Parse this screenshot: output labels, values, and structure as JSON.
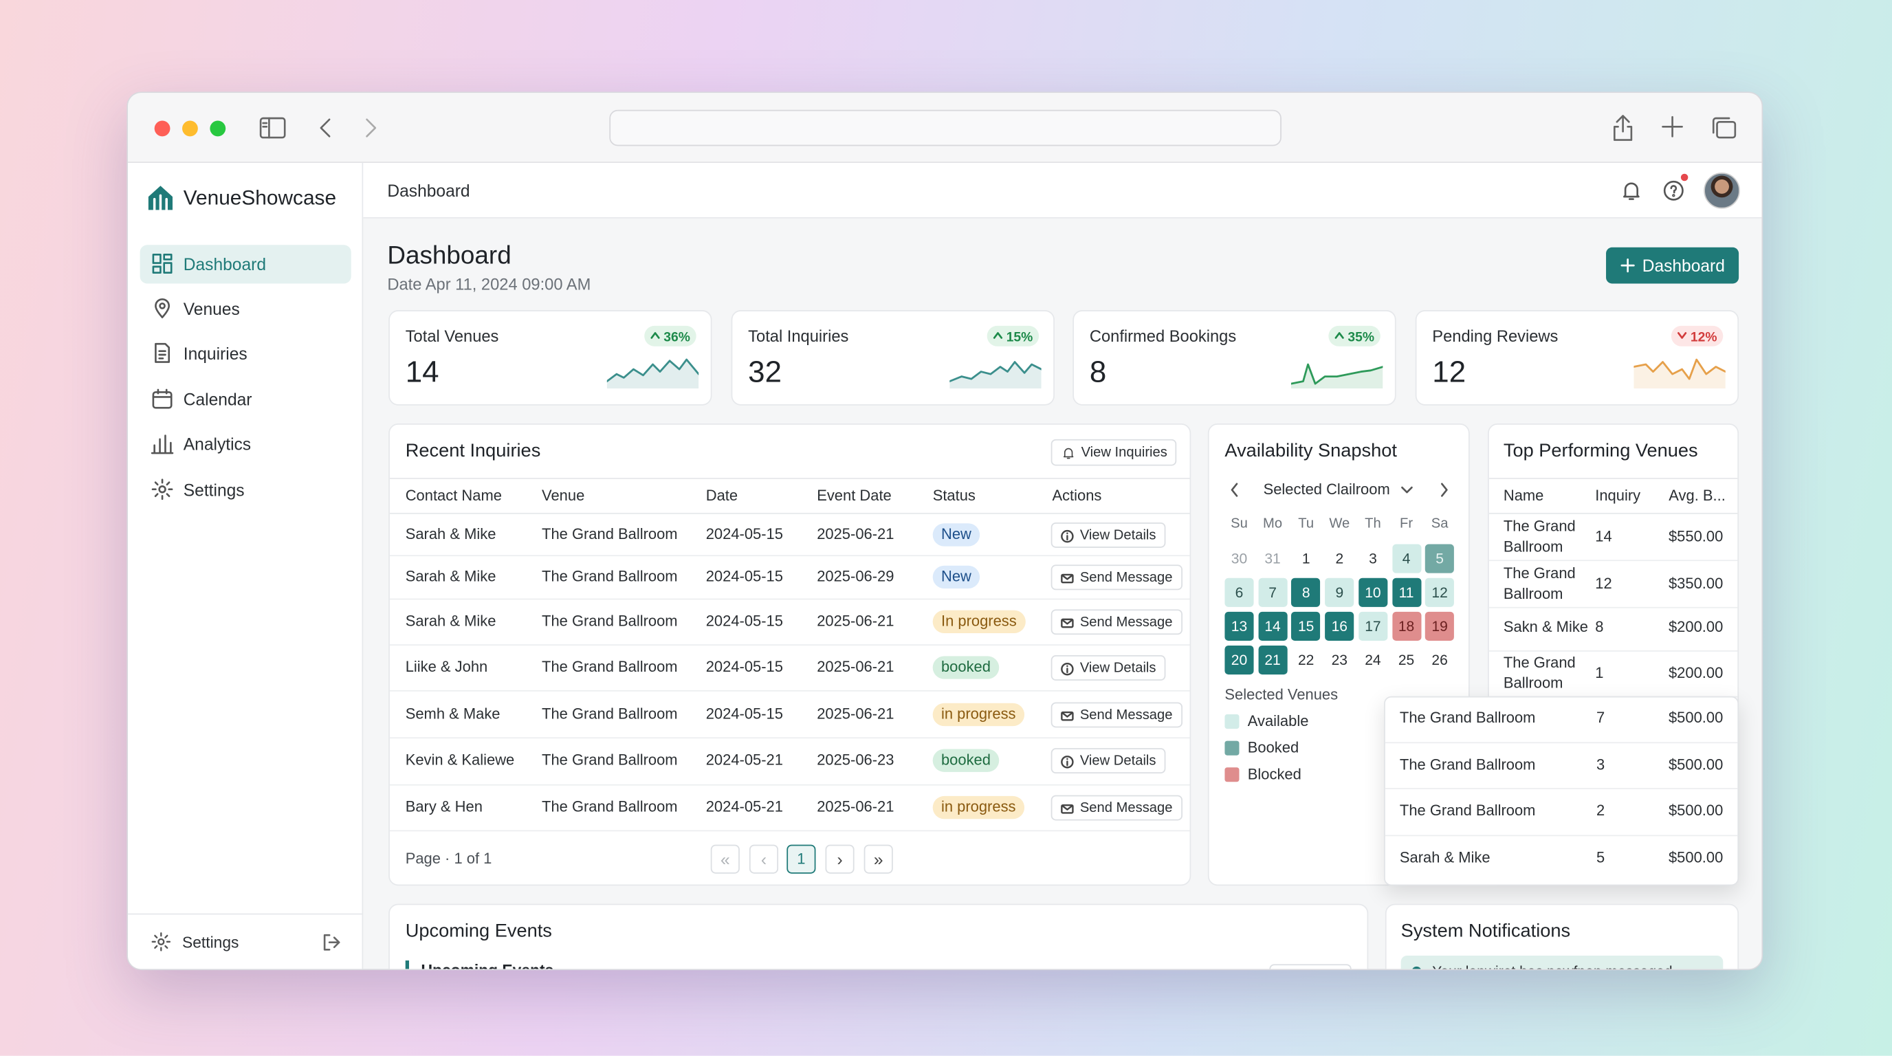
{
  "sidebar": {
    "brand": "VenueShowcase",
    "nav": [
      "Dashboard",
      "Venues",
      "Inquiries",
      "Calendar",
      "Analytics",
      "Settings"
    ],
    "footer": "Settings"
  },
  "topbar": {
    "title": "Dashboard"
  },
  "header": {
    "title": "Dashboard",
    "date": "Date Apr 11, 2024 09:00 AM",
    "button": "Dashboard"
  },
  "stats": [
    {
      "label": "Total Venues",
      "value": 14,
      "change": "36%",
      "trend": "up"
    },
    {
      "label": "Total Inquiries",
      "value": 32,
      "change": "15%",
      "trend": "up"
    },
    {
      "label": "Confirmed Bookings",
      "value": 8,
      "change": "35%",
      "trend": "up"
    },
    {
      "label": "Pending Reviews",
      "value": 12,
      "change": "12%",
      "trend": "down"
    }
  ],
  "inquiries": {
    "title": "Recent Inquiries",
    "button": "View Inquiries",
    "columns": [
      "Contact Name",
      "Venue",
      "Date",
      "Event Date",
      "Status",
      "Actions"
    ],
    "rows": [
      [
        "Sarah & Mike",
        "The Grand Ballroom",
        "2024-05-15",
        "2025-06-21",
        "New",
        "View Details"
      ],
      [
        "Sarah & Mike",
        "The Grand Ballroom",
        "2024-05-15",
        "2025-06-29",
        "New",
        "Send Message"
      ],
      [
        "Sarah & Mike",
        "The Grand Ballroom",
        "2024-05-15",
        "2025-06-21",
        "In progress",
        "Send Message"
      ],
      [
        "Liike & John",
        "The Grand Ballroom",
        "2024-05-15",
        "2025-06-21",
        "booked",
        "View Details"
      ],
      [
        "Semh & Make",
        "The Grand Ballroom",
        "2024-05-15",
        "2025-06-21",
        "in progress",
        "Send Message"
      ],
      [
        "Kevin & Kaliewe",
        "The Grand Ballroom",
        "2024-05-21",
        "2025-06-23",
        "booked",
        "View Details"
      ],
      [
        "Bary & Hen",
        "The Grand Ballroom",
        "2024-05-21",
        "2025-06-21",
        "in progress",
        "Send Message"
      ]
    ],
    "pagination": {
      "label": "Page · 1 of 1",
      "page": "1"
    }
  },
  "availability": {
    "title": "Availability Snapshot",
    "venue": "Selected Clailroom",
    "weekdays": [
      "Su",
      "Mo",
      "Tu",
      "We",
      "Th",
      "Fr",
      "Sa"
    ],
    "days": [
      {
        "day": "30",
        "state": "muted"
      },
      {
        "day": "31",
        "state": "muted"
      },
      {
        "day": "1",
        "state": "plain"
      },
      {
        "day": "2",
        "state": "plain"
      },
      {
        "day": "3",
        "state": "plain"
      },
      {
        "day": "4",
        "state": "available"
      },
      {
        "day": "5",
        "state": "selected"
      },
      {
        "day": "6",
        "state": "available"
      },
      {
        "day": "7",
        "state": "available"
      },
      {
        "day": "8",
        "state": "booked"
      },
      {
        "day": "9",
        "state": "available"
      },
      {
        "day": "10",
        "state": "booked"
      },
      {
        "day": "11",
        "state": "booked"
      },
      {
        "day": "12",
        "state": "available"
      },
      {
        "day": "13",
        "state": "booked"
      },
      {
        "day": "14",
        "state": "booked"
      },
      {
        "day": "15",
        "state": "booked"
      },
      {
        "day": "16",
        "state": "booked"
      },
      {
        "day": "17",
        "state": "available"
      },
      {
        "day": "18",
        "state": "blocked"
      },
      {
        "day": "19",
        "state": "blocked"
      },
      {
        "day": "20",
        "state": "booked"
      },
      {
        "day": "21",
        "state": "booked"
      },
      {
        "day": "22",
        "state": "plain"
      },
      {
        "day": "23",
        "state": "plain"
      },
      {
        "day": "24",
        "state": "plain"
      },
      {
        "day": "25",
        "state": "plain"
      },
      {
        "day": "26",
        "state": "plain"
      }
    ],
    "legend_title": "Selected Venues",
    "legend": [
      {
        "label": "Available",
        "state": "available"
      },
      {
        "label": "Booked",
        "state": "selected"
      },
      {
        "label": "Blocked",
        "state": "blocked"
      }
    ]
  },
  "top_venues": {
    "title": "Top Performing Venues",
    "columns": [
      "Name",
      "Inquiry",
      "Avg. B..."
    ],
    "rows": [
      [
        "The Grand Ballroom",
        14,
        "$550.00"
      ],
      [
        "The Grand Ballroom",
        12,
        "$350.00"
      ],
      [
        "Sakn & Mike",
        8,
        "$200.00"
      ],
      [
        "The Grand Ballroom",
        1,
        "$200.00"
      ]
    ],
    "popover_rows": [
      [
        "The Grand Ballroom",
        7,
        "$500.00"
      ],
      [
        "The Grand Ballroom",
        3,
        "$500.00"
      ],
      [
        "The Grand Ballroom",
        2,
        "$500.00"
      ],
      [
        "Sarah & Mike",
        5,
        "$500.00"
      ]
    ]
  },
  "upcoming": {
    "title": "Upcoming Events",
    "subtitle": "Upcoming Events"
  },
  "notifications": {
    "title": "System Notifications",
    "items": [
      "Your lonwiret has newfnon messaged"
    ]
  }
}
